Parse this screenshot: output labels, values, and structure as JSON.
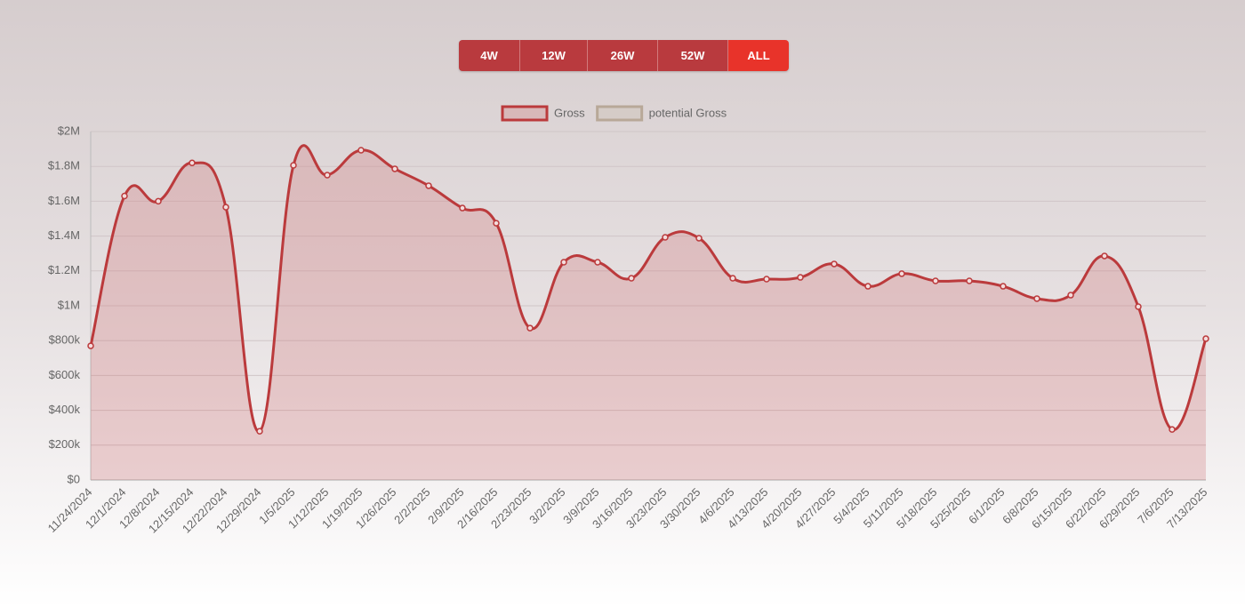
{
  "range_buttons": [
    "4W",
    "12W",
    "26W",
    "52W",
    "ALL"
  ],
  "active_button": 4,
  "chart_data": {
    "type": "line",
    "x": [
      "11/24/2024",
      "12/1/2024",
      "12/8/2024",
      "12/15/2024",
      "12/22/2024",
      "12/29/2024",
      "1/5/2025",
      "1/12/2025",
      "1/19/2025",
      "1/26/2025",
      "2/2/2025",
      "2/9/2025",
      "2/16/2025",
      "2/23/2025",
      "3/2/2025",
      "3/9/2025",
      "3/16/2025",
      "3/23/2025",
      "3/30/2025",
      "4/6/2025",
      "4/13/2025",
      "4/20/2025",
      "4/27/2025",
      "5/4/2025",
      "5/11/2025",
      "5/18/2025",
      "5/25/2025",
      "6/1/2025",
      "6/8/2025",
      "6/15/2025",
      "6/22/2025",
      "6/29/2025",
      "7/6/2025",
      "7/13/2025"
    ],
    "series": [
      {
        "name": "Gross",
        "color": "#bb3a3c",
        "fill": "rgba(210,120,122,0.3)",
        "values": [
          770000,
          1630000,
          1600000,
          1820000,
          1566000,
          280000,
          1806000,
          1750000,
          1893000,
          1786000,
          1689000,
          1561000,
          1474000,
          872000,
          1250000,
          1250000,
          1158000,
          1393000,
          1388000,
          1158000,
          1153000,
          1163000,
          1240000,
          1112000,
          1184000,
          1143000,
          1143000,
          1112000,
          1041000,
          1061000,
          1286000,
          995000,
          290000,
          811000
        ]
      },
      {
        "name": "potential Gross",
        "color": "#b8a898",
        "fill": "rgba(200,185,170,0.3)",
        "values": [
          null,
          null,
          null,
          null,
          null,
          null,
          null,
          null,
          null,
          null,
          null,
          null,
          null,
          null,
          null,
          null,
          null,
          null,
          null,
          null,
          null,
          null,
          null,
          null,
          null,
          null,
          null,
          null,
          null,
          null,
          null,
          null,
          null,
          null
        ]
      }
    ],
    "ylim": [
      0,
      2000000
    ],
    "yticks": [
      {
        "value": 0,
        "label": "$0"
      },
      {
        "value": 200000,
        "label": "$200k"
      },
      {
        "value": 400000,
        "label": "$400k"
      },
      {
        "value": 600000,
        "label": "$600k"
      },
      {
        "value": 800000,
        "label": "$800k"
      },
      {
        "value": 1000000,
        "label": "$1M"
      },
      {
        "value": 1200000,
        "label": "$1.2M"
      },
      {
        "value": 1400000,
        "label": "$1.4M"
      },
      {
        "value": 1600000,
        "label": "$1.6M"
      },
      {
        "value": 1800000,
        "label": "$1.8M"
      },
      {
        "value": 2000000,
        "label": "$2M"
      }
    ],
    "grid": true,
    "legend": "top"
  }
}
